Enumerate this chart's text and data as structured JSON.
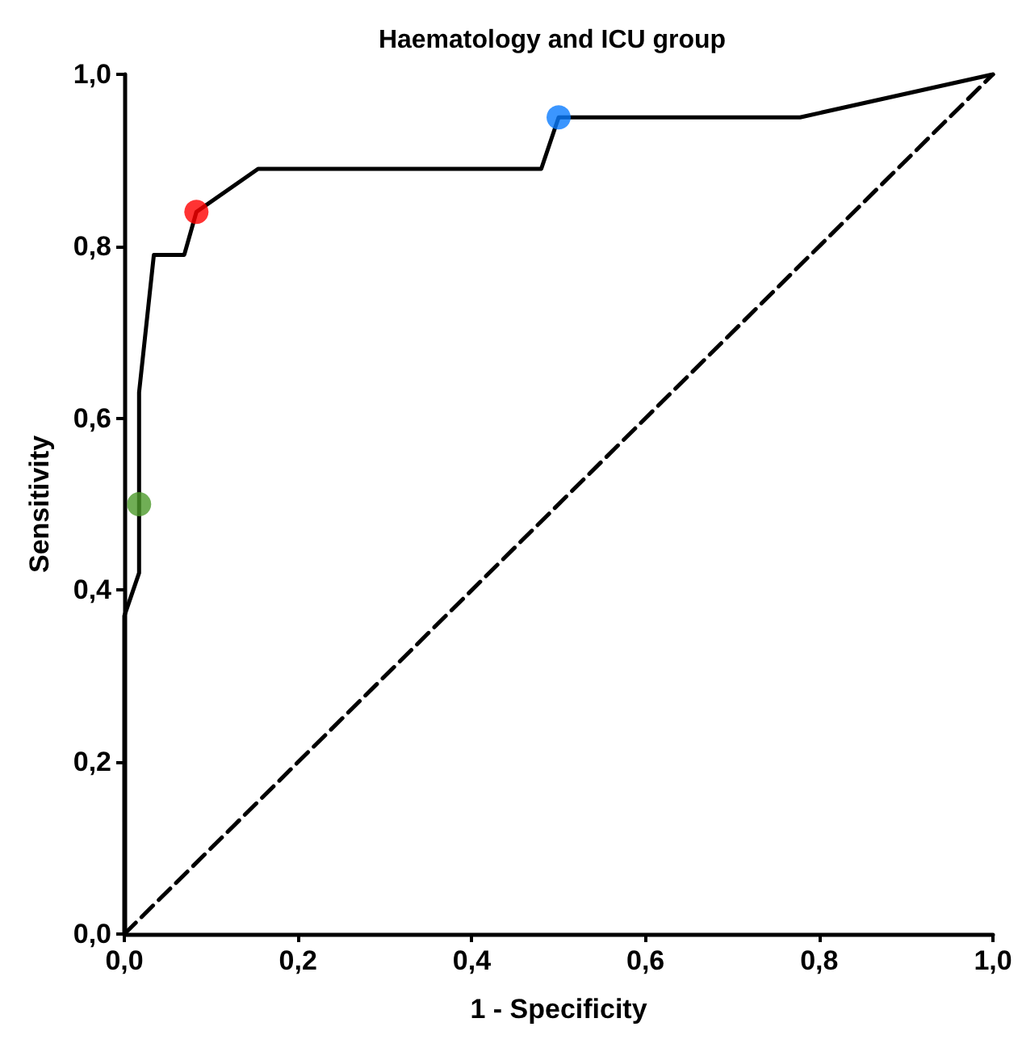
{
  "chart_data": {
    "type": "line",
    "title": "Haematology and ICU group",
    "xlabel": "1 - Specificity",
    "ylabel": "Sensitivity",
    "xlim": [
      0,
      1
    ],
    "ylim": [
      0,
      1
    ],
    "xticks": [
      {
        "value": 0,
        "label": "0,0"
      },
      {
        "value": 0.2,
        "label": "0,2"
      },
      {
        "value": 0.4,
        "label": "0,4"
      },
      {
        "value": 0.6,
        "label": "0,6"
      },
      {
        "value": 0.8,
        "label": "0,8"
      },
      {
        "value": 1,
        "label": "1,0"
      }
    ],
    "yticks": [
      {
        "value": 0,
        "label": "0,0"
      },
      {
        "value": 0.2,
        "label": "0,2"
      },
      {
        "value": 0.4,
        "label": "0,4"
      },
      {
        "value": 0.6,
        "label": "0,6"
      },
      {
        "value": 0.8,
        "label": "0,8"
      },
      {
        "value": 1,
        "label": "1,0"
      }
    ],
    "grid": false,
    "series": [
      {
        "color": "#000000",
        "line_style": "solid",
        "marker": "none",
        "x": [
          0,
          0,
          0.017,
          0.017,
          0.034,
          0.069,
          0.083,
          0.154,
          0.48,
          0.5,
          0.778,
          1
        ],
        "values": [
          0,
          0.37,
          0.42,
          0.63,
          0.79,
          0.79,
          0.84,
          0.89,
          0.89,
          0.95,
          0.95,
          1
        ]
      },
      {
        "color": "#000000",
        "line_style": "dashed",
        "marker": "none",
        "x": [
          0,
          1
        ],
        "values": [
          0,
          1
        ]
      },
      {
        "type": "scatter",
        "marker": "circle",
        "x": [
          0.017,
          0.083,
          0.5
        ],
        "values": [
          0.5,
          0.84,
          0.95
        ],
        "colors": [
          "#4c9a2a",
          "#ff0000",
          "#0a7cff"
        ]
      }
    ]
  }
}
